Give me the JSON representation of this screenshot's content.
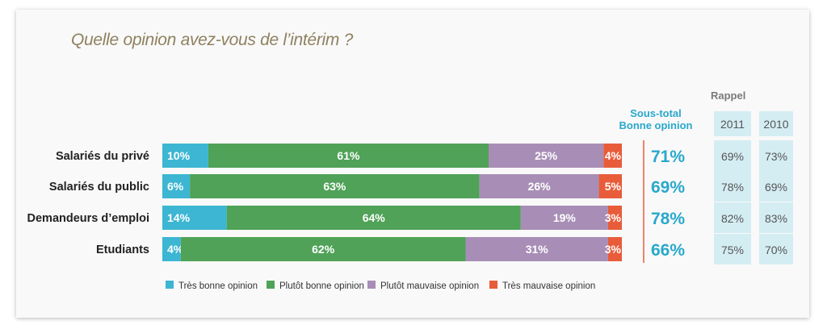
{
  "title": "Quelle opinion avez-vous de l’intérim ?",
  "subtotal_header": [
    "Sous-total",
    "Bonne opinion"
  ],
  "rappel_label": "Rappel",
  "colors": {
    "tres_bonne": "#3cb6d3",
    "plutot_bonne": "#4fa257",
    "plutot_mauvaise": "#a88eb6",
    "tres_mauvaise": "#e85c3a",
    "subtotal": "#29a8cc",
    "rappel_bg": "#d4edf3",
    "title": "#8f8160"
  },
  "chart_data": {
    "type": "bar",
    "orientation": "horizontal",
    "stacked": true,
    "categories": [
      "Salariés du privé",
      "Salariés du public",
      "Demandeurs d’emploi",
      "Etudiants"
    ],
    "series": [
      {
        "name": "Très bonne opinion",
        "values": [
          10,
          6,
          14,
          4
        ]
      },
      {
        "name": "Plutôt bonne opinion",
        "values": [
          61,
          63,
          64,
          62
        ]
      },
      {
        "name": "Plutôt mauvaise opinion",
        "values": [
          25,
          26,
          19,
          31
        ]
      },
      {
        "name": "Très mauvaise opinion",
        "values": [
          4,
          5,
          3,
          3
        ]
      }
    ],
    "value_suffix": "%",
    "subtotal_bonne_opinion": [
      "71%",
      "69%",
      "78%",
      "66%"
    ],
    "rappel": {
      "columns": [
        "2011",
        "2010"
      ],
      "rows": [
        [
          "69%",
          "73%"
        ],
        [
          "78%",
          "69%"
        ],
        [
          "82%",
          "83%"
        ],
        [
          "75%",
          "70%"
        ]
      ]
    },
    "legend_position": "bottom"
  }
}
